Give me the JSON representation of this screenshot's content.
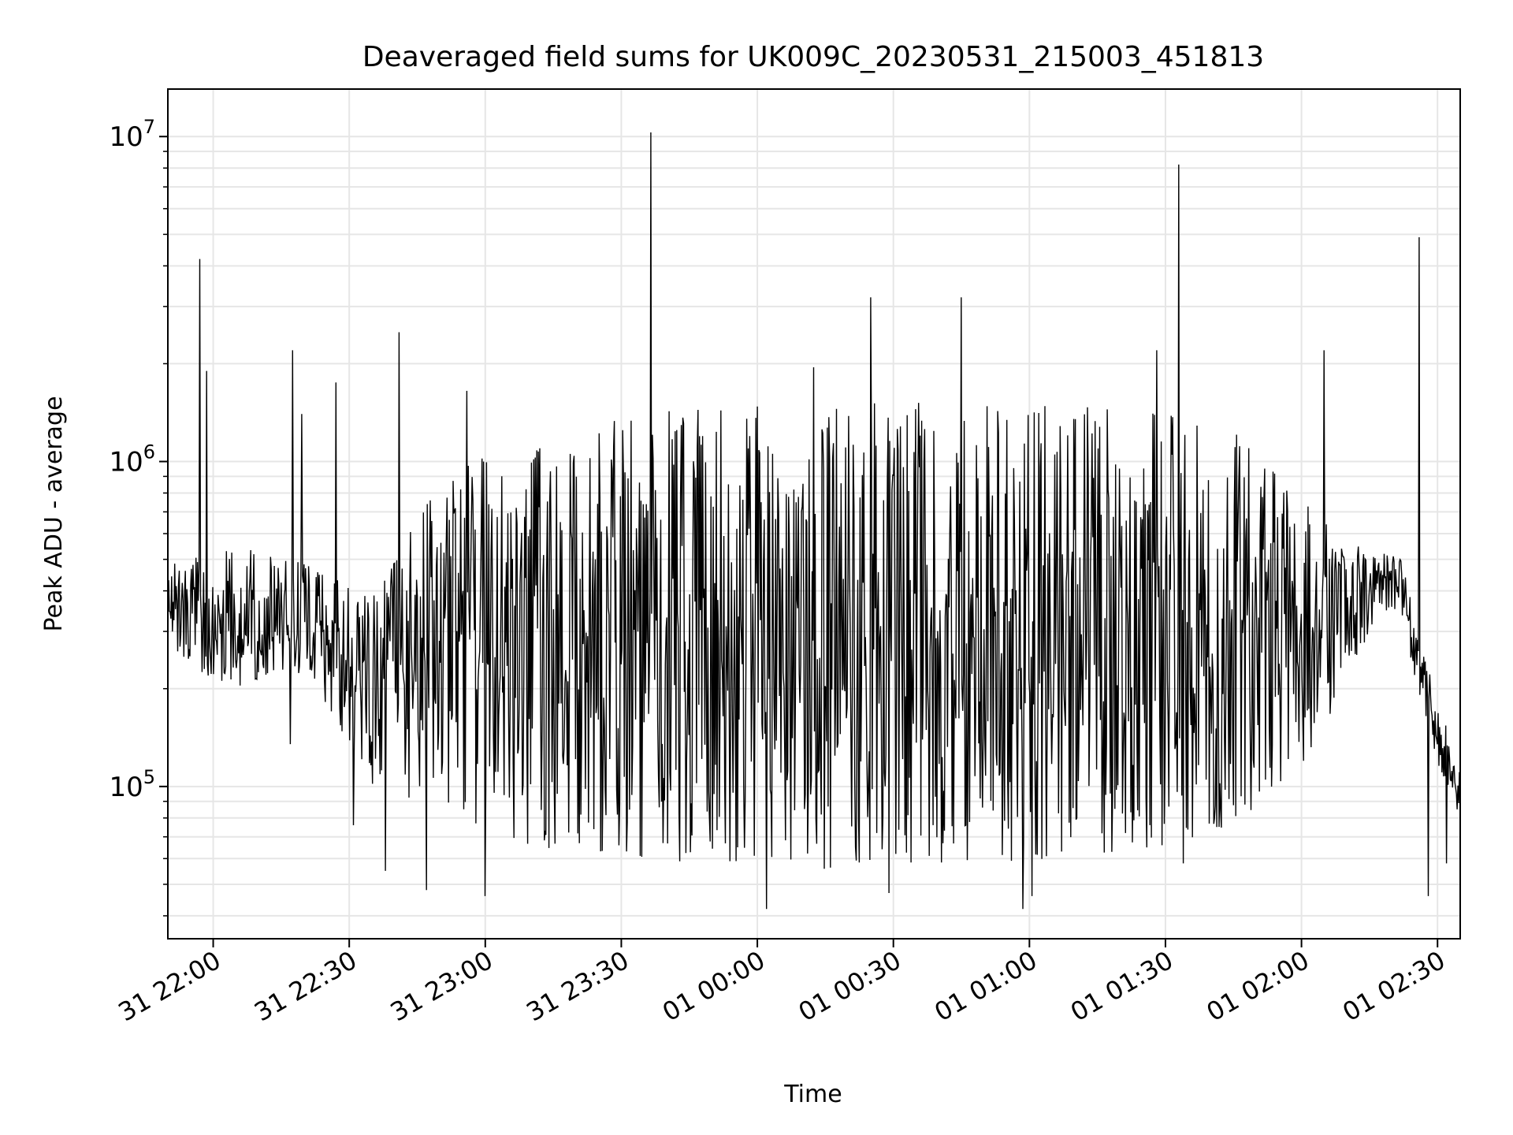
{
  "chart_data": {
    "type": "line",
    "title": "Deaveraged field sums for UK009C_20230531_215003_451813",
    "xlabel": "Time",
    "ylabel": "Peak ADU - average",
    "yscale": "log",
    "ylim": [
      34000,
      14000000
    ],
    "xlim": [
      "2023-05-31 21:50:00",
      "2023-06-01 02:35:00"
    ],
    "grid": true,
    "grid_color": "#e6e6e6",
    "line_color": "#000000",
    "x_ticks": [
      {
        "t": "2023-05-31 22:00:00",
        "label": "31 22:00"
      },
      {
        "t": "2023-05-31 22:30:00",
        "label": "31 22:30"
      },
      {
        "t": "2023-05-31 23:00:00",
        "label": "31 23:00"
      },
      {
        "t": "2023-05-31 23:30:00",
        "label": "31 23:30"
      },
      {
        "t": "2023-06-01 00:00:00",
        "label": "01 00:00"
      },
      {
        "t": "2023-06-01 00:30:00",
        "label": "01 00:30"
      },
      {
        "t": "2023-06-01 01:00:00",
        "label": "01 01:00"
      },
      {
        "t": "2023-06-01 01:30:00",
        "label": "01 01:30"
      },
      {
        "t": "2023-06-01 02:00:00",
        "label": "01 02:00"
      },
      {
        "t": "2023-06-01 02:30:00",
        "label": "01 02:30"
      }
    ],
    "y_ticks": [
      {
        "value": 100000,
        "base": "10",
        "exp": "5"
      },
      {
        "value": 1000000,
        "base": "10",
        "exp": "6"
      },
      {
        "value": 10000000,
        "base": "10",
        "exp": "7"
      }
    ],
    "envelope": [
      {
        "t": "2023-05-31 21:50:00",
        "low": 250000,
        "high": 480000
      },
      {
        "t": "2023-05-31 22:05:00",
        "low": 200000,
        "high": 550000
      },
      {
        "t": "2023-05-31 22:15:00",
        "low": 230000,
        "high": 520000
      },
      {
        "t": "2023-05-31 22:25:00",
        "low": 180000,
        "high": 450000
      },
      {
        "t": "2023-05-31 22:35:00",
        "low": 100000,
        "high": 380000
      },
      {
        "t": "2023-05-31 22:45:00",
        "low": 90000,
        "high": 700000
      },
      {
        "t": "2023-05-31 22:55:00",
        "low": 80000,
        "high": 1000000
      },
      {
        "t": "2023-05-31 23:10:00",
        "low": 65000,
        "high": 1100000
      },
      {
        "t": "2023-05-31 23:25:00",
        "low": 62000,
        "high": 1300000
      },
      {
        "t": "2023-05-31 23:40:00",
        "low": 58000,
        "high": 1450000
      },
      {
        "t": "2023-06-01 00:10:00",
        "low": 55000,
        "high": 1500000
      },
      {
        "t": "2023-06-01 00:40:00",
        "low": 58000,
        "high": 1520000
      },
      {
        "t": "2023-06-01 01:10:00",
        "low": 60000,
        "high": 1500000
      },
      {
        "t": "2023-06-01 01:30:00",
        "low": 65000,
        "high": 1400000
      },
      {
        "t": "2023-06-01 01:45:00",
        "low": 75000,
        "high": 1250000
      },
      {
        "t": "2023-06-01 01:55:00",
        "low": 90000,
        "high": 900000
      },
      {
        "t": "2023-06-01 02:05:00",
        "low": 150000,
        "high": 650000
      },
      {
        "t": "2023-06-01 02:15:00",
        "low": 300000,
        "high": 550000
      },
      {
        "t": "2023-06-01 02:22:00",
        "low": 350000,
        "high": 500000
      },
      {
        "t": "2023-06-01 02:27:00",
        "low": 150000,
        "high": 250000
      },
      {
        "t": "2023-06-01 02:35:00",
        "low": 80000,
        "high": 120000
      }
    ],
    "spikes": [
      {
        "t": "2023-05-31 21:57:00",
        "value": 4200000
      },
      {
        "t": "2023-05-31 21:58:30",
        "value": 1900000
      },
      {
        "t": "2023-05-31 22:17:30",
        "value": 2200000
      },
      {
        "t": "2023-05-31 22:19:30",
        "value": 1400000
      },
      {
        "t": "2023-05-31 22:27:00",
        "value": 1750000
      },
      {
        "t": "2023-05-31 22:41:00",
        "value": 2500000
      },
      {
        "t": "2023-05-31 22:56:00",
        "value": 1650000
      },
      {
        "t": "2023-05-31 23:36:30",
        "value": 10300000
      },
      {
        "t": "2023-06-01 00:12:30",
        "value": 1950000
      },
      {
        "t": "2023-06-01 00:25:00",
        "value": 3200000
      },
      {
        "t": "2023-06-01 00:45:00",
        "value": 3200000
      },
      {
        "t": "2023-06-01 01:28:00",
        "value": 2200000
      },
      {
        "t": "2023-06-01 01:33:00",
        "value": 8200000
      },
      {
        "t": "2023-06-01 02:05:00",
        "value": 2200000
      },
      {
        "t": "2023-06-01 02:26:00",
        "value": 4900000
      }
    ],
    "dips": [
      {
        "t": "2023-05-31 22:17:00",
        "value": 135000
      },
      {
        "t": "2023-05-31 22:31:00",
        "value": 76000
      },
      {
        "t": "2023-05-31 22:38:00",
        "value": 55000
      },
      {
        "t": "2023-05-31 22:47:00",
        "value": 48000
      },
      {
        "t": "2023-05-31 23:00:00",
        "value": 46000
      },
      {
        "t": "2023-06-01 00:02:00",
        "value": 42000
      },
      {
        "t": "2023-06-01 00:29:00",
        "value": 47000
      },
      {
        "t": "2023-06-01 00:58:30",
        "value": 42000
      },
      {
        "t": "2023-06-01 01:00:30",
        "value": 46000
      },
      {
        "t": "2023-06-01 01:34:00",
        "value": 58000
      },
      {
        "t": "2023-06-01 02:28:00",
        "value": 46000
      },
      {
        "t": "2023-06-01 02:32:00",
        "value": 58000
      }
    ]
  }
}
